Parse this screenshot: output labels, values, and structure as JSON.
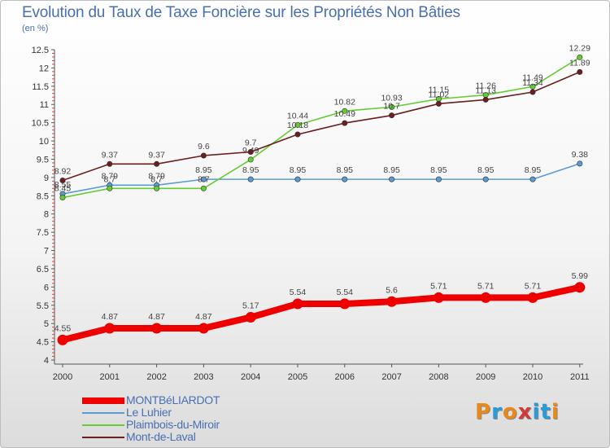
{
  "header": {
    "title": "Evolution du Taux de Taxe Foncière sur les Propriétés Non Bâties",
    "subtitle": "(en %)"
  },
  "logo": {
    "letters": [
      "P",
      "r",
      "o",
      "x",
      "i",
      "t",
      "i"
    ],
    "colors": [
      "#e8891c",
      "#2a9ad8",
      "#e8891c",
      "#d23a3a",
      "#2a9ad8",
      "#2a9ad8",
      "#e8891c"
    ]
  },
  "chart_data": {
    "type": "line",
    "title": "Evolution du Taux de Taxe Foncière sur les Propriétés Non Bâties",
    "ylabel": "(en %)",
    "xlabel": "",
    "x": [
      "2000",
      "2001",
      "2002",
      "2003",
      "2004",
      "2005",
      "2006",
      "2007",
      "2008",
      "2009",
      "2010",
      "2011"
    ],
    "ylim": [
      4,
      12.5
    ],
    "yticks": [
      "4",
      "4.5",
      "5",
      "5.5",
      "6",
      "6.5",
      "7",
      "7.5",
      "8",
      "8.5",
      "9",
      "9.5",
      "10",
      "10.5",
      "11",
      "11.5",
      "12",
      "12.5"
    ],
    "grid": false,
    "legend_position": "bottom-left",
    "series": [
      {
        "name": "MONTBéLIARDOT",
        "color": "#ee0000",
        "values": [
          4.55,
          4.87,
          4.87,
          4.87,
          5.17,
          5.54,
          5.54,
          5.6,
          5.71,
          5.71,
          5.71,
          5.99
        ],
        "labels": [
          "4.55",
          "4.87",
          "4.87",
          "4.87",
          "5.17",
          "5.54",
          "5.54",
          "5.6",
          "5.71",
          "5.71",
          "5.71",
          "5.99"
        ]
      },
      {
        "name": "Le Luhier",
        "color": "#5b9bd5",
        "values": [
          8.55,
          8.79,
          8.79,
          8.95,
          8.95,
          8.95,
          8.95,
          8.95,
          8.95,
          8.95,
          8.95,
          9.38
        ],
        "labels": [
          "8.55",
          "8.79",
          "8.79",
          "8.95",
          "8.95",
          "8.95",
          "8.95",
          "8.95",
          "8.95",
          "8.95",
          "8.95",
          "9.38"
        ]
      },
      {
        "name": "Plaimbois-du-Miroir",
        "color": "#66cc33",
        "values": [
          8.45,
          8.7,
          8.7,
          8.7,
          9.49,
          10.44,
          10.82,
          10.93,
          11.15,
          11.26,
          11.49,
          12.29
        ],
        "labels": [
          "8.45",
          "8.7",
          "8.7",
          "8.7",
          "9.49",
          "10.44",
          "10.82",
          "10.93",
          "11.15",
          "11.26",
          "11.49",
          "12.29"
        ]
      },
      {
        "name": "Mont-de-Laval",
        "color": "#6b1e1e",
        "values": [
          8.92,
          9.37,
          9.37,
          9.6,
          9.7,
          10.18,
          10.49,
          10.7,
          11.02,
          11.13,
          11.34,
          11.89
        ],
        "labels": [
          "8.92",
          "9.37",
          "9.37",
          "9.6",
          "9.7",
          "10.18",
          "10.49",
          "10.7",
          "11.02",
          "11.13",
          "11.34",
          "11.89"
        ]
      }
    ]
  }
}
